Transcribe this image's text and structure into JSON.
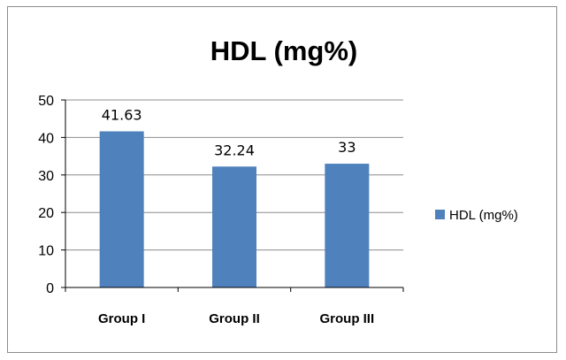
{
  "chart_data": {
    "type": "bar",
    "title": "HDL (mg%)",
    "xlabel": "",
    "ylabel": "",
    "categories": [
      "Group I",
      "Group II",
      "Group III"
    ],
    "series": [
      {
        "name": "HDL (mg%)",
        "values": [
          41.63,
          32.24,
          33
        ]
      }
    ],
    "data_labels": [
      "41.63",
      "32.24",
      "33"
    ],
    "ylim": [
      0,
      50
    ],
    "yticks": [
      0,
      10,
      20,
      30,
      40,
      50
    ],
    "ytick_labels": [
      "0",
      "10",
      "20",
      "30",
      "40",
      "50"
    ],
    "grid": true,
    "legend_position": "right",
    "colors": {
      "bar": "#4f81bd",
      "grid": "#8c8c8c",
      "axis": "#000000"
    }
  }
}
